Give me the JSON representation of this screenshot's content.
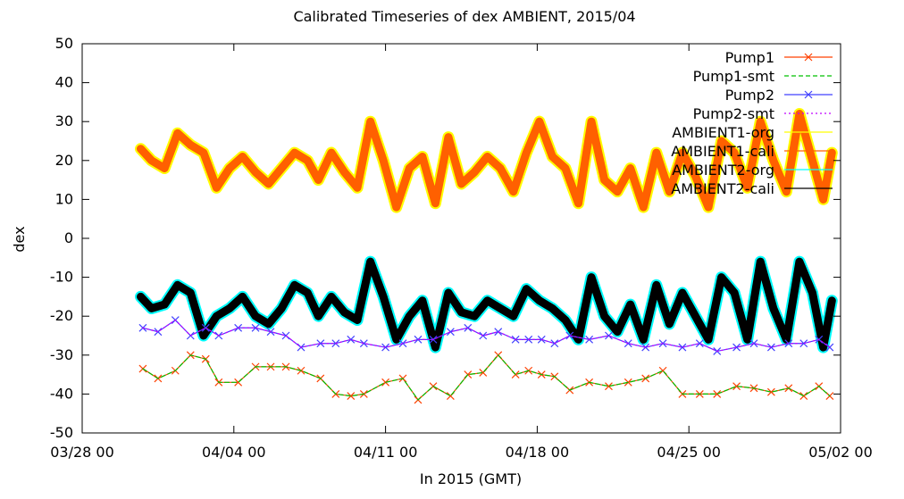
{
  "chart_data": {
    "type": "line",
    "title": "Calibrated Timeseries of dex AMBIENT, 2015/04",
    "xlabel": "In 2015 (GMT)",
    "ylabel": "dex",
    "xlim": [
      "03/28 00",
      "05/02 00"
    ],
    "ylim": [
      -50,
      50
    ],
    "x_ticks": [
      "03/28 00",
      "04/04 00",
      "04/11 00",
      "04/18 00",
      "04/25 00",
      "05/02 00"
    ],
    "y_ticks": [
      -50,
      -40,
      -30,
      -20,
      -10,
      0,
      10,
      20,
      30,
      40,
      50
    ],
    "legend_position": "top-right",
    "legend": [
      "Pump1",
      "Pump1-smt",
      "Pump2",
      "Pump2-smt",
      "AMBIENT1-org",
      "AMBIENT1-cali",
      "AMBIENT2-org",
      "AMBIENT2-cali"
    ],
    "series": [
      {
        "name": "Pump1",
        "color": "#ff4000",
        "marker": "x",
        "x_days": [
          2.8,
          3.5,
          4.3,
          5.0,
          5.7,
          6.3,
          7.2,
          8.0,
          8.7,
          9.4,
          10.1,
          11.0,
          11.7,
          12.4,
          13.0,
          14.0,
          14.8,
          15.5,
          16.2,
          17.0,
          17.8,
          18.5,
          19.2,
          20.0,
          20.6,
          21.2,
          21.8,
          22.5,
          23.4,
          24.3,
          25.2,
          26.0,
          26.8,
          27.7,
          28.5,
          29.3,
          30.2,
          31.0,
          31.8,
          32.6,
          33.3,
          34.0,
          34.5
        ],
        "y": [
          -33.5,
          -36,
          -34,
          -30,
          -31,
          -37,
          -37,
          -33,
          -33,
          -33,
          -34,
          -36,
          -40,
          -40.5,
          -40,
          -37,
          -36,
          -41.5,
          -38,
          -40.5,
          -35,
          -34.5,
          -30,
          -35,
          -34,
          -35,
          -35.5,
          -39,
          -37,
          -38,
          -37,
          -36,
          -34,
          -40,
          -40,
          -40,
          -38,
          -38.5,
          -39.5,
          -38.5,
          -40.5,
          -38,
          -40.5
        ]
      },
      {
        "name": "Pump1-smt",
        "color": "#00c000",
        "style": "dashed",
        "x_days": [
          2.8,
          3.5,
          4.3,
          5.0,
          5.7,
          6.3,
          7.2,
          8.0,
          8.7,
          9.4,
          10.1,
          11.0,
          11.7,
          12.4,
          13.0,
          14.0,
          14.8,
          15.5,
          16.2,
          17.0,
          17.8,
          18.5,
          19.2,
          20.0,
          20.6,
          21.2,
          21.8,
          22.5,
          23.4,
          24.3,
          25.2,
          26.0,
          26.8,
          27.7,
          28.5,
          29.3,
          30.2,
          31.0,
          31.8,
          32.6,
          33.3,
          34.0,
          34.5
        ],
        "y": [
          -33.5,
          -36,
          -34,
          -30,
          -31,
          -37,
          -37,
          -33,
          -33,
          -33,
          -34,
          -36,
          -40,
          -40.5,
          -40,
          -37,
          -36,
          -41.5,
          -38,
          -40.5,
          -35,
          -34.5,
          -30,
          -35,
          -34,
          -35,
          -35.5,
          -39,
          -37,
          -38,
          -37,
          -36,
          -34,
          -40,
          -40,
          -40,
          -38,
          -38.5,
          -39.5,
          -38.5,
          -40.5,
          -38,
          -40.5
        ]
      },
      {
        "name": "Pump2",
        "color": "#4040ff",
        "marker": "x",
        "x_days": [
          2.8,
          3.5,
          4.3,
          5.0,
          5.7,
          6.3,
          7.2,
          8.0,
          8.7,
          9.4,
          10.1,
          11.0,
          11.7,
          12.4,
          13.0,
          14.0,
          14.8,
          15.5,
          16.2,
          17.0,
          17.8,
          18.5,
          19.2,
          20.0,
          20.6,
          21.2,
          21.8,
          22.5,
          23.4,
          24.3,
          25.2,
          26.0,
          26.8,
          27.7,
          28.5,
          29.3,
          30.2,
          31.0,
          31.8,
          32.6,
          33.3,
          34.0,
          34.5
        ],
        "y": [
          -23,
          -24,
          -21,
          -25,
          -23,
          -25,
          -23,
          -23,
          -24,
          -25,
          -28,
          -27,
          -27,
          -26,
          -27,
          -28,
          -27,
          -26,
          -26,
          -24,
          -23,
          -25,
          -24,
          -26,
          -26,
          -26,
          -27,
          -25,
          -26,
          -25,
          -27,
          -28,
          -27,
          -28,
          -27,
          -29,
          -28,
          -27,
          -28,
          -27,
          -27,
          -26,
          -28
        ]
      },
      {
        "name": "Pump2-smt",
        "color": "#c000ff",
        "style": "dotted",
        "x_days": [
          2.8,
          3.5,
          4.3,
          5.0,
          5.7,
          6.3,
          7.2,
          8.0,
          8.7,
          9.4,
          10.1,
          11.0,
          11.7,
          12.4,
          13.0,
          14.0,
          14.8,
          15.5,
          16.2,
          17.0,
          17.8,
          18.5,
          19.2,
          20.0,
          20.6,
          21.2,
          21.8,
          22.5,
          23.4,
          24.3,
          25.2,
          26.0,
          26.8,
          27.7,
          28.5,
          29.3,
          30.2,
          31.0,
          31.8,
          32.6,
          33.3,
          34.0,
          34.5
        ],
        "y": [
          -23,
          -24,
          -21,
          -25,
          -23,
          -25,
          -23,
          -23,
          -24,
          -25,
          -28,
          -27,
          -27,
          -26,
          -27,
          -28,
          -27,
          -26,
          -26,
          -24,
          -23,
          -25,
          -24,
          -26,
          -26,
          -26,
          -27,
          -25,
          -26,
          -25,
          -27,
          -28,
          -27,
          -28,
          -27,
          -29,
          -28,
          -27,
          -28,
          -27,
          -27,
          -26,
          -28
        ]
      },
      {
        "name": "AMBIENT1-org",
        "color": "#ffff00",
        "x_days": [
          2.7,
          3.2,
          3.8,
          4.4,
          5.0,
          5.6,
          6.2,
          6.8,
          7.4,
          8.0,
          8.6,
          9.2,
          9.8,
          10.4,
          10.9,
          11.5,
          12.1,
          12.7,
          13.3,
          13.9,
          14.5,
          15.1,
          15.7,
          16.3,
          16.9,
          17.5,
          18.1,
          18.7,
          19.3,
          19.9,
          20.5,
          21.1,
          21.7,
          22.3,
          22.9,
          23.5,
          24.1,
          24.7,
          25.3,
          25.9,
          26.5,
          27.1,
          27.7,
          28.3,
          28.9,
          29.5,
          30.1,
          30.7,
          31.3,
          31.9,
          32.5,
          33.1,
          33.7,
          34.2,
          34.6
        ],
        "y": [
          23,
          20,
          18,
          27,
          24,
          22,
          13,
          18,
          21,
          17,
          14,
          18,
          22,
          20,
          15,
          22,
          17,
          13,
          30,
          20,
          8,
          18,
          21,
          9,
          26,
          14,
          17,
          21,
          18,
          12,
          22,
          30,
          21,
          18,
          9,
          30,
          15,
          12,
          18,
          8,
          22,
          12,
          22,
          16,
          8,
          25,
          22,
          13,
          30,
          20,
          12,
          32,
          20,
          10,
          22
        ]
      },
      {
        "name": "AMBIENT1-cali",
        "color": "#ff6000",
        "x_days": [
          2.7,
          3.2,
          3.8,
          4.4,
          5.0,
          5.6,
          6.2,
          6.8,
          7.4,
          8.0,
          8.6,
          9.2,
          9.8,
          10.4,
          10.9,
          11.5,
          12.1,
          12.7,
          13.3,
          13.9,
          14.5,
          15.1,
          15.7,
          16.3,
          16.9,
          17.5,
          18.1,
          18.7,
          19.3,
          19.9,
          20.5,
          21.1,
          21.7,
          22.3,
          22.9,
          23.5,
          24.1,
          24.7,
          25.3,
          25.9,
          26.5,
          27.1,
          27.7,
          28.3,
          28.9,
          29.5,
          30.1,
          30.7,
          31.3,
          31.9,
          32.5,
          33.1,
          33.7,
          34.2,
          34.6
        ],
        "y": [
          23,
          20,
          18,
          27,
          24,
          22,
          13,
          18,
          21,
          17,
          14,
          18,
          22,
          20,
          15,
          22,
          17,
          13,
          30,
          20,
          8,
          18,
          21,
          9,
          26,
          14,
          17,
          21,
          18,
          12,
          22,
          30,
          21,
          18,
          9,
          30,
          15,
          12,
          18,
          8,
          22,
          12,
          22,
          16,
          8,
          25,
          22,
          13,
          30,
          20,
          12,
          32,
          20,
          10,
          22
        ]
      },
      {
        "name": "AMBIENT2-org",
        "color": "#00ffff",
        "x_days": [
          2.7,
          3.2,
          3.8,
          4.4,
          5.0,
          5.6,
          6.2,
          6.8,
          7.4,
          8.0,
          8.6,
          9.2,
          9.8,
          10.4,
          10.9,
          11.5,
          12.1,
          12.7,
          13.3,
          13.9,
          14.5,
          15.1,
          15.7,
          16.3,
          16.9,
          17.5,
          18.1,
          18.7,
          19.3,
          19.9,
          20.5,
          21.1,
          21.7,
          22.3,
          22.9,
          23.5,
          24.1,
          24.7,
          25.3,
          25.9,
          26.5,
          27.1,
          27.7,
          28.3,
          28.9,
          29.5,
          30.1,
          30.7,
          31.3,
          31.9,
          32.5,
          33.1,
          33.7,
          34.2,
          34.6
        ],
        "y": [
          -15,
          -18,
          -17,
          -12,
          -14,
          -25,
          -20,
          -18,
          -15,
          -20,
          -22,
          -18,
          -12,
          -14,
          -20,
          -15,
          -19,
          -21,
          -6,
          -15,
          -26,
          -20,
          -16,
          -28,
          -14,
          -19,
          -20,
          -16,
          -18,
          -20,
          -13,
          -16,
          -18,
          -21,
          -26,
          -10,
          -20,
          -24,
          -17,
          -26,
          -12,
          -22,
          -14,
          -20,
          -26,
          -10,
          -14,
          -26,
          -6,
          -18,
          -26,
          -6,
          -14,
          -28,
          -16
        ]
      },
      {
        "name": "AMBIENT2-cali",
        "color": "#000000",
        "x_days": [
          2.7,
          3.2,
          3.8,
          4.4,
          5.0,
          5.6,
          6.2,
          6.8,
          7.4,
          8.0,
          8.6,
          9.2,
          9.8,
          10.4,
          10.9,
          11.5,
          12.1,
          12.7,
          13.3,
          13.9,
          14.5,
          15.1,
          15.7,
          16.3,
          16.9,
          17.5,
          18.1,
          18.7,
          19.3,
          19.9,
          20.5,
          21.1,
          21.7,
          22.3,
          22.9,
          23.5,
          24.1,
          24.7,
          25.3,
          25.9,
          26.5,
          27.1,
          27.7,
          28.3,
          28.9,
          29.5,
          30.1,
          30.7,
          31.3,
          31.9,
          32.5,
          33.1,
          33.7,
          34.2,
          34.6
        ],
        "y": [
          -15,
          -18,
          -17,
          -12,
          -14,
          -25,
          -20,
          -18,
          -15,
          -20,
          -22,
          -18,
          -12,
          -14,
          -20,
          -15,
          -19,
          -21,
          -6,
          -15,
          -26,
          -20,
          -16,
          -28,
          -14,
          -19,
          -20,
          -16,
          -18,
          -20,
          -13,
          -16,
          -18,
          -21,
          -26,
          -10,
          -20,
          -24,
          -17,
          -26,
          -12,
          -22,
          -14,
          -20,
          -26,
          -10,
          -14,
          -26,
          -6,
          -18,
          -26,
          -6,
          -14,
          -28,
          -16
        ]
      }
    ]
  }
}
